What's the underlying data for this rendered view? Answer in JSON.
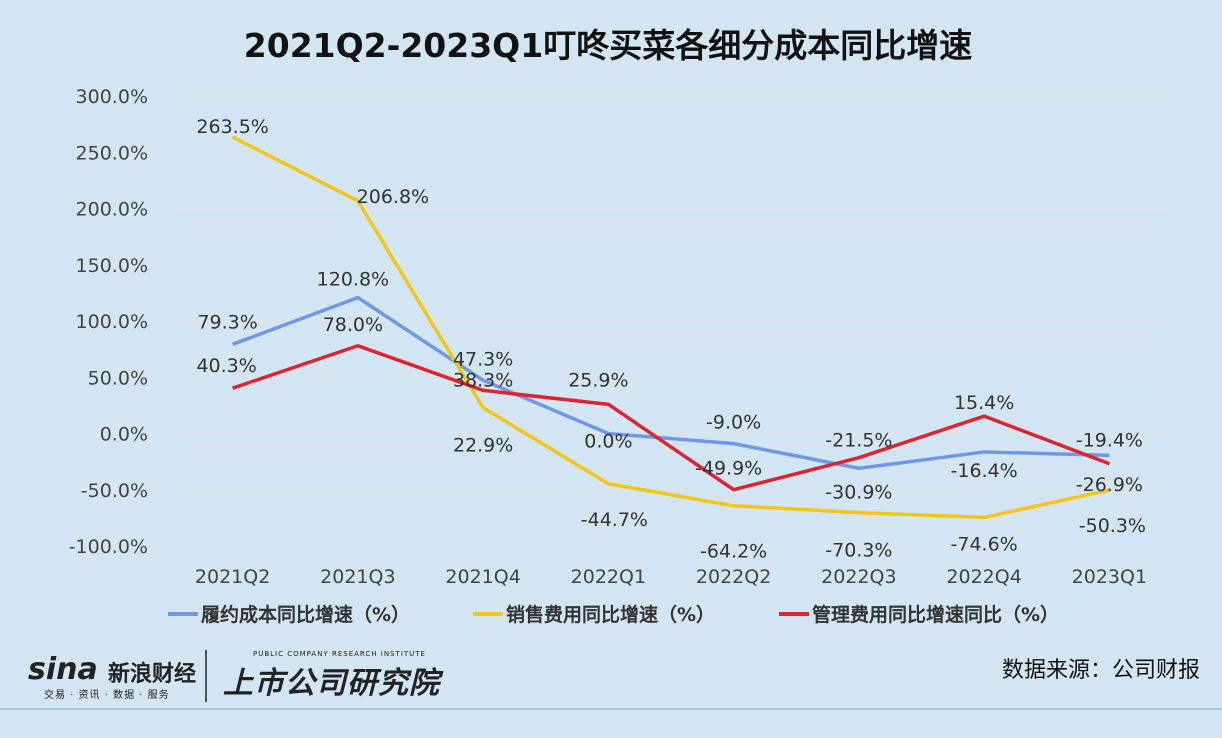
{
  "chart_data": {
    "type": "line",
    "title": "2021Q2-2023Q1叮咚买菜各细分成本同比增速",
    "categories": [
      "2021Q2",
      "2021Q3",
      "2021Q4",
      "2022Q1",
      "2022Q2",
      "2022Q3",
      "2022Q4",
      "2023Q1"
    ],
    "ylim": [
      -100,
      300
    ],
    "yticks": [
      -100,
      -50,
      0,
      50,
      100,
      150,
      200,
      250,
      300
    ],
    "ytick_labels": [
      "-100.0%",
      "-50.0%",
      "0.0%",
      "50.0%",
      "100.0%",
      "150.0%",
      "200.0%",
      "250.0%",
      "300.0%"
    ],
    "grid": true,
    "legend_position": "bottom",
    "series": [
      {
        "name": "履约成本同比增速（%）",
        "color": "#6f97ee",
        "values": [
          79.3,
          120.8,
          47.3,
          0.0,
          -9.0,
          -30.9,
          -16.4,
          -19.4
        ],
        "labels": [
          "79.3%",
          "120.8%",
          "47.3%",
          "0.0%",
          "-9.0%",
          "-30.9%",
          "-16.4%",
          "-19.4%"
        ]
      },
      {
        "name": "销售费用同比增速（%）",
        "color": "#f5c518",
        "values": [
          263.5,
          206.8,
          22.9,
          -44.7,
          -64.2,
          -70.3,
          -74.6,
          -50.3
        ],
        "labels": [
          "263.5%",
          "206.8%",
          "22.9%",
          "-44.7%",
          "-64.2%",
          "-70.3%",
          "-74.6%",
          "-50.3%"
        ]
      },
      {
        "name": "管理费用同比增速同比（%）",
        "color": "#e0242f",
        "values": [
          40.3,
          78.0,
          38.3,
          25.9,
          -49.9,
          -21.5,
          15.4,
          -26.9
        ],
        "labels": [
          "40.3%",
          "78.0%",
          "38.3%",
          "25.9%",
          "-49.9%",
          "-21.5%",
          "15.4%",
          "-26.9%"
        ]
      }
    ]
  },
  "footer": {
    "sina_logo": "sina",
    "sina_name": "新浪财经",
    "sina_sub": "交易 · 资讯 · 数据 · 服务",
    "institute_sub": "PUBLIC COMPANY RESEARCH INSTITUTE",
    "institute_name": "上市公司研究院",
    "source": "数据来源：公司财报"
  }
}
